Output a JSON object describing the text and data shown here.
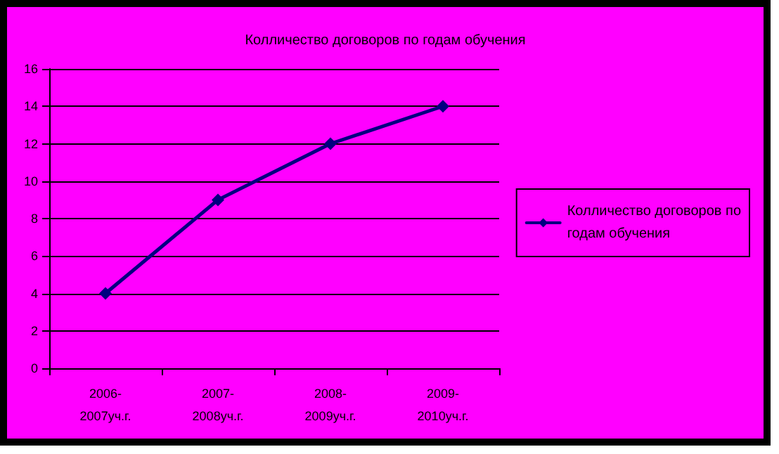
{
  "chart_data": {
    "type": "line",
    "title": "Колличество договоров по годам обучения",
    "categories": [
      "2006-\n2007уч.г.",
      "2007-\n2008уч.г.",
      "2008-\n2009уч.г.",
      "2009-\n2010уч.г."
    ],
    "series": [
      {
        "name": "Колличество договоров по\nгодам обучения",
        "color": "#000080",
        "values": [
          4,
          9,
          12,
          14
        ]
      }
    ],
    "ylim": [
      0,
      16
    ],
    "yticks": [
      0,
      2,
      4,
      6,
      8,
      10,
      12,
      14,
      16
    ],
    "grid": "y",
    "legend": "right",
    "marker": "diamond",
    "line_style": "solid"
  }
}
